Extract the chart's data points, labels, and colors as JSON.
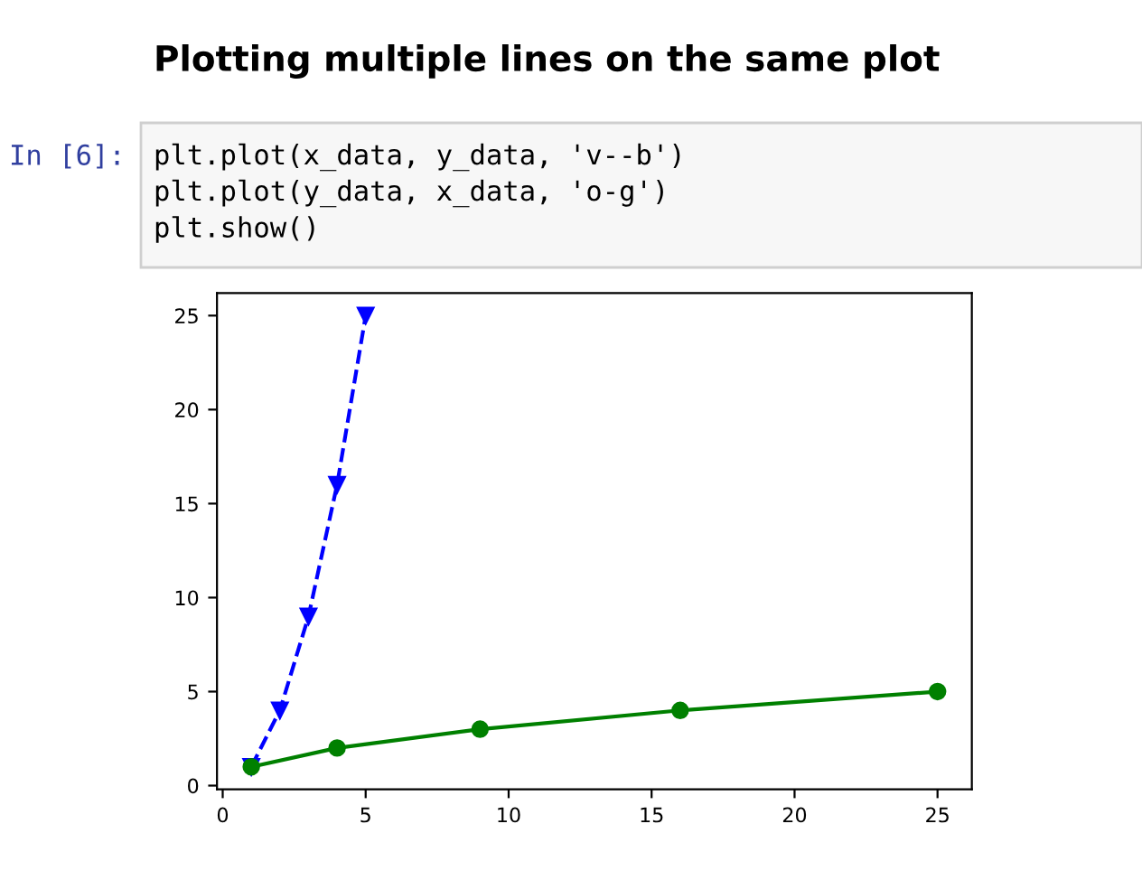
{
  "chart_data": {
    "type": "line",
    "title": "Plotting multiple lines on the same plot",
    "annotations": [
      "In [6]:",
      "plt.plot(x_data, y_data, 'v--b')",
      "plt.plot(y_data, x_data, 'o-g')",
      "plt.show()"
    ],
    "series": [
      {
        "x": [
          1,
          2,
          3,
          4,
          5
        ],
        "values": [
          1,
          4,
          9,
          16,
          25
        ],
        "color": "#0000ff",
        "marker": "triangle",
        "line_style": "dashed"
      },
      {
        "x": [
          1,
          4,
          9,
          16,
          25
        ],
        "values": [
          1,
          2,
          3,
          4,
          5
        ],
        "color": "#008000",
        "marker": "circle",
        "line_style": "solid"
      }
    ],
    "xlim": [
      -0.2,
      26.2
    ],
    "ylim": [
      -0.2,
      26.2
    ],
    "xticks": [
      0,
      5,
      10,
      15,
      20,
      25
    ],
    "yticks": [
      0,
      5,
      10,
      15,
      20,
      25
    ],
    "grid": false
  }
}
